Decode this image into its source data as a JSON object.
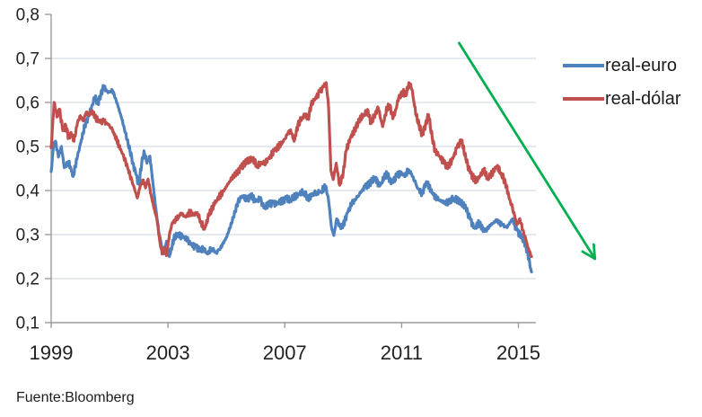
{
  "source_note": "Fuente:Bloomberg",
  "colors": {
    "euro_line": "#4f81bd",
    "dolar_line": "#c0504d",
    "arrow": "#00b050",
    "gridline": "#ccd4e2",
    "axis": "#9b9b9b",
    "tick_text": "#212121"
  },
  "legend": [
    {
      "label": "real-euro",
      "color": "#4f81bd"
    },
    {
      "label": "real-dólar",
      "color": "#c0504d"
    }
  ],
  "chart_data": {
    "type": "line",
    "title": "",
    "xlabel": "",
    "ylabel": "",
    "xlim": [
      1999,
      2015.6
    ],
    "ylim": [
      0.1,
      0.8
    ],
    "grid": "horizontal",
    "legend_position": "right",
    "x_ticks": [
      1999,
      2003,
      2007,
      2011,
      2015
    ],
    "x_tick_labels": [
      "1999",
      "2003",
      "2007",
      "2011",
      "2015"
    ],
    "y_ticks": [
      0.1,
      0.2,
      0.3,
      0.4,
      0.5,
      0.6,
      0.7,
      0.8
    ],
    "y_tick_labels": [
      "0,1",
      "0,2",
      "0,3",
      "0,4",
      "0,5",
      "0,6",
      "0,7",
      "0,8"
    ],
    "annotation_arrow": {
      "from": [
        2012.97,
        0.735
      ],
      "to": [
        2017.62,
        0.245
      ]
    },
    "series": [
      {
        "name": "real-euro",
        "color": "#4f81bd",
        "points": [
          [
            1999.0,
            0.443
          ],
          [
            1999.08,
            0.5
          ],
          [
            1999.15,
            0.512
          ],
          [
            1999.25,
            0.476
          ],
          [
            1999.35,
            0.5
          ],
          [
            1999.45,
            0.452
          ],
          [
            1999.6,
            0.466
          ],
          [
            1999.75,
            0.432
          ],
          [
            1999.9,
            0.477
          ],
          [
            2000.0,
            0.505
          ],
          [
            2000.15,
            0.546
          ],
          [
            2000.3,
            0.573
          ],
          [
            2000.4,
            0.594
          ],
          [
            2000.5,
            0.611
          ],
          [
            2000.6,
            0.598
          ],
          [
            2000.7,
            0.62
          ],
          [
            2000.8,
            0.636
          ],
          [
            2000.95,
            0.622
          ],
          [
            2001.1,
            0.627
          ],
          [
            2001.2,
            0.61
          ],
          [
            2001.3,
            0.589
          ],
          [
            2001.4,
            0.567
          ],
          [
            2001.5,
            0.543
          ],
          [
            2001.6,
            0.515
          ],
          [
            2001.7,
            0.49
          ],
          [
            2001.8,
            0.463
          ],
          [
            2001.9,
            0.437
          ],
          [
            2002.0,
            0.414
          ],
          [
            2002.1,
            0.46
          ],
          [
            2002.18,
            0.49
          ],
          [
            2002.28,
            0.462
          ],
          [
            2002.38,
            0.478
          ],
          [
            2002.48,
            0.42
          ],
          [
            2002.58,
            0.36
          ],
          [
            2002.7,
            0.3
          ],
          [
            2002.85,
            0.256
          ],
          [
            2002.95,
            0.285
          ],
          [
            2003.05,
            0.25
          ],
          [
            2003.2,
            0.29
          ],
          [
            2003.35,
            0.302
          ],
          [
            2003.5,
            0.295
          ],
          [
            2003.65,
            0.288
          ],
          [
            2003.8,
            0.278
          ],
          [
            2003.95,
            0.272
          ],
          [
            2004.1,
            0.262
          ],
          [
            2004.2,
            0.27
          ],
          [
            2004.35,
            0.256
          ],
          [
            2004.5,
            0.268
          ],
          [
            2004.65,
            0.259
          ],
          [
            2004.8,
            0.27
          ],
          [
            2005.0,
            0.293
          ],
          [
            2005.2,
            0.33
          ],
          [
            2005.4,
            0.376
          ],
          [
            2005.55,
            0.388
          ],
          [
            2005.7,
            0.378
          ],
          [
            2005.85,
            0.39
          ],
          [
            2006.0,
            0.375
          ],
          [
            2006.15,
            0.382
          ],
          [
            2006.3,
            0.36
          ],
          [
            2006.45,
            0.368
          ],
          [
            2006.6,
            0.372
          ],
          [
            2006.75,
            0.372
          ],
          [
            2006.9,
            0.375
          ],
          [
            2007.05,
            0.383
          ],
          [
            2007.2,
            0.378
          ],
          [
            2007.35,
            0.387
          ],
          [
            2007.5,
            0.392
          ],
          [
            2007.65,
            0.396
          ],
          [
            2007.8,
            0.383
          ],
          [
            2007.95,
            0.392
          ],
          [
            2008.1,
            0.395
          ],
          [
            2008.25,
            0.398
          ],
          [
            2008.4,
            0.41
          ],
          [
            2008.5,
            0.378
          ],
          [
            2008.6,
            0.316
          ],
          [
            2008.68,
            0.298
          ],
          [
            2008.78,
            0.336
          ],
          [
            2008.9,
            0.318
          ],
          [
            2009.0,
            0.322
          ],
          [
            2009.15,
            0.35
          ],
          [
            2009.3,
            0.37
          ],
          [
            2009.45,
            0.382
          ],
          [
            2009.6,
            0.395
          ],
          [
            2009.75,
            0.41
          ],
          [
            2009.95,
            0.418
          ],
          [
            2010.1,
            0.43
          ],
          [
            2010.25,
            0.41
          ],
          [
            2010.4,
            0.428
          ],
          [
            2010.5,
            0.438
          ],
          [
            2010.6,
            0.425
          ],
          [
            2010.7,
            0.418
          ],
          [
            2010.85,
            0.435
          ],
          [
            2011.0,
            0.44
          ],
          [
            2011.1,
            0.432
          ],
          [
            2011.25,
            0.447
          ],
          [
            2011.4,
            0.43
          ],
          [
            2011.55,
            0.405
          ],
          [
            2011.7,
            0.394
          ],
          [
            2011.85,
            0.42
          ],
          [
            2012.0,
            0.4
          ],
          [
            2012.15,
            0.386
          ],
          [
            2012.3,
            0.378
          ],
          [
            2012.5,
            0.373
          ],
          [
            2012.65,
            0.377
          ],
          [
            2012.8,
            0.382
          ],
          [
            2013.0,
            0.377
          ],
          [
            2013.2,
            0.36
          ],
          [
            2013.35,
            0.335
          ],
          [
            2013.5,
            0.314
          ],
          [
            2013.65,
            0.326
          ],
          [
            2013.85,
            0.307
          ],
          [
            2014.05,
            0.322
          ],
          [
            2014.25,
            0.332
          ],
          [
            2014.45,
            0.322
          ],
          [
            2014.6,
            0.316
          ],
          [
            2014.8,
            0.336
          ],
          [
            2014.95,
            0.31
          ],
          [
            2015.1,
            0.295
          ],
          [
            2015.2,
            0.285
          ],
          [
            2015.3,
            0.264
          ],
          [
            2015.38,
            0.24
          ],
          [
            2015.45,
            0.215
          ]
        ]
      },
      {
        "name": "real-dólar",
        "color": "#c0504d",
        "points": [
          [
            1999.0,
            0.497
          ],
          [
            1999.1,
            0.6
          ],
          [
            1999.2,
            0.567
          ],
          [
            1999.28,
            0.585
          ],
          [
            1999.4,
            0.536
          ],
          [
            1999.5,
            0.548
          ],
          [
            1999.6,
            0.52
          ],
          [
            1999.68,
            0.532
          ],
          [
            1999.78,
            0.512
          ],
          [
            1999.9,
            0.553
          ],
          [
            2000.0,
            0.57
          ],
          [
            2000.1,
            0.558
          ],
          [
            2000.2,
            0.578
          ],
          [
            2000.3,
            0.57
          ],
          [
            2000.4,
            0.582
          ],
          [
            2000.5,
            0.565
          ],
          [
            2000.65,
            0.556
          ],
          [
            2000.8,
            0.558
          ],
          [
            2000.95,
            0.55
          ],
          [
            2001.1,
            0.538
          ],
          [
            2001.25,
            0.512
          ],
          [
            2001.4,
            0.49
          ],
          [
            2001.55,
            0.466
          ],
          [
            2001.7,
            0.435
          ],
          [
            2001.85,
            0.405
          ],
          [
            2001.95,
            0.383
          ],
          [
            2002.05,
            0.41
          ],
          [
            2002.15,
            0.424
          ],
          [
            2002.23,
            0.406
          ],
          [
            2002.32,
            0.426
          ],
          [
            2002.42,
            0.39
          ],
          [
            2002.52,
            0.36
          ],
          [
            2002.62,
            0.335
          ],
          [
            2002.72,
            0.285
          ],
          [
            2002.8,
            0.256
          ],
          [
            2002.88,
            0.27
          ],
          [
            2002.95,
            0.252
          ],
          [
            2003.05,
            0.3
          ],
          [
            2003.15,
            0.327
          ],
          [
            2003.3,
            0.335
          ],
          [
            2003.45,
            0.347
          ],
          [
            2003.6,
            0.34
          ],
          [
            2003.75,
            0.35
          ],
          [
            2003.9,
            0.344
          ],
          [
            2004.0,
            0.35
          ],
          [
            2004.12,
            0.33
          ],
          [
            2004.25,
            0.312
          ],
          [
            2004.4,
            0.343
          ],
          [
            2004.6,
            0.37
          ],
          [
            2004.75,
            0.385
          ],
          [
            2004.9,
            0.398
          ],
          [
            2005.1,
            0.42
          ],
          [
            2005.3,
            0.437
          ],
          [
            2005.5,
            0.452
          ],
          [
            2005.7,
            0.465
          ],
          [
            2005.9,
            0.474
          ],
          [
            2006.05,
            0.455
          ],
          [
            2006.2,
            0.462
          ],
          [
            2006.35,
            0.465
          ],
          [
            2006.5,
            0.478
          ],
          [
            2006.65,
            0.492
          ],
          [
            2006.8,
            0.5
          ],
          [
            2006.95,
            0.512
          ],
          [
            2007.1,
            0.528
          ],
          [
            2007.2,
            0.538
          ],
          [
            2007.32,
            0.512
          ],
          [
            2007.45,
            0.55
          ],
          [
            2007.6,
            0.566
          ],
          [
            2007.72,
            0.574
          ],
          [
            2007.8,
            0.562
          ],
          [
            2007.9,
            0.594
          ],
          [
            2008.05,
            0.61
          ],
          [
            2008.2,
            0.625
          ],
          [
            2008.32,
            0.635
          ],
          [
            2008.42,
            0.645
          ],
          [
            2008.5,
            0.59
          ],
          [
            2008.58,
            0.445
          ],
          [
            2008.66,
            0.425
          ],
          [
            2008.76,
            0.462
          ],
          [
            2008.88,
            0.412
          ],
          [
            2009.0,
            0.44
          ],
          [
            2009.1,
            0.49
          ],
          [
            2009.25,
            0.52
          ],
          [
            2009.4,
            0.54
          ],
          [
            2009.55,
            0.558
          ],
          [
            2009.7,
            0.572
          ],
          [
            2009.85,
            0.582
          ],
          [
            2009.95,
            0.552
          ],
          [
            2010.1,
            0.575
          ],
          [
            2010.2,
            0.588
          ],
          [
            2010.35,
            0.545
          ],
          [
            2010.5,
            0.588
          ],
          [
            2010.6,
            0.594
          ],
          [
            2010.7,
            0.563
          ],
          [
            2010.8,
            0.585
          ],
          [
            2010.9,
            0.61
          ],
          [
            2011.05,
            0.625
          ],
          [
            2011.15,
            0.615
          ],
          [
            2011.25,
            0.645
          ],
          [
            2011.35,
            0.63
          ],
          [
            2011.5,
            0.57
          ],
          [
            2011.6,
            0.548
          ],
          [
            2011.7,
            0.527
          ],
          [
            2011.82,
            0.55
          ],
          [
            2011.92,
            0.572
          ],
          [
            2012.05,
            0.52
          ],
          [
            2012.15,
            0.49
          ],
          [
            2012.3,
            0.478
          ],
          [
            2012.45,
            0.462
          ],
          [
            2012.6,
            0.455
          ],
          [
            2012.75,
            0.472
          ],
          [
            2012.9,
            0.498
          ],
          [
            2013.05,
            0.515
          ],
          [
            2013.2,
            0.472
          ],
          [
            2013.35,
            0.44
          ],
          [
            2013.55,
            0.42
          ],
          [
            2013.7,
            0.435
          ],
          [
            2013.82,
            0.447
          ],
          [
            2013.95,
            0.426
          ],
          [
            2014.1,
            0.44
          ],
          [
            2014.25,
            0.455
          ],
          [
            2014.4,
            0.44
          ],
          [
            2014.55,
            0.42
          ],
          [
            2014.7,
            0.38
          ],
          [
            2014.85,
            0.35
          ],
          [
            2014.94,
            0.322
          ],
          [
            2015.05,
            0.336
          ],
          [
            2015.15,
            0.31
          ],
          [
            2015.25,
            0.29
          ],
          [
            2015.33,
            0.27
          ],
          [
            2015.45,
            0.25
          ]
        ]
      }
    ]
  }
}
